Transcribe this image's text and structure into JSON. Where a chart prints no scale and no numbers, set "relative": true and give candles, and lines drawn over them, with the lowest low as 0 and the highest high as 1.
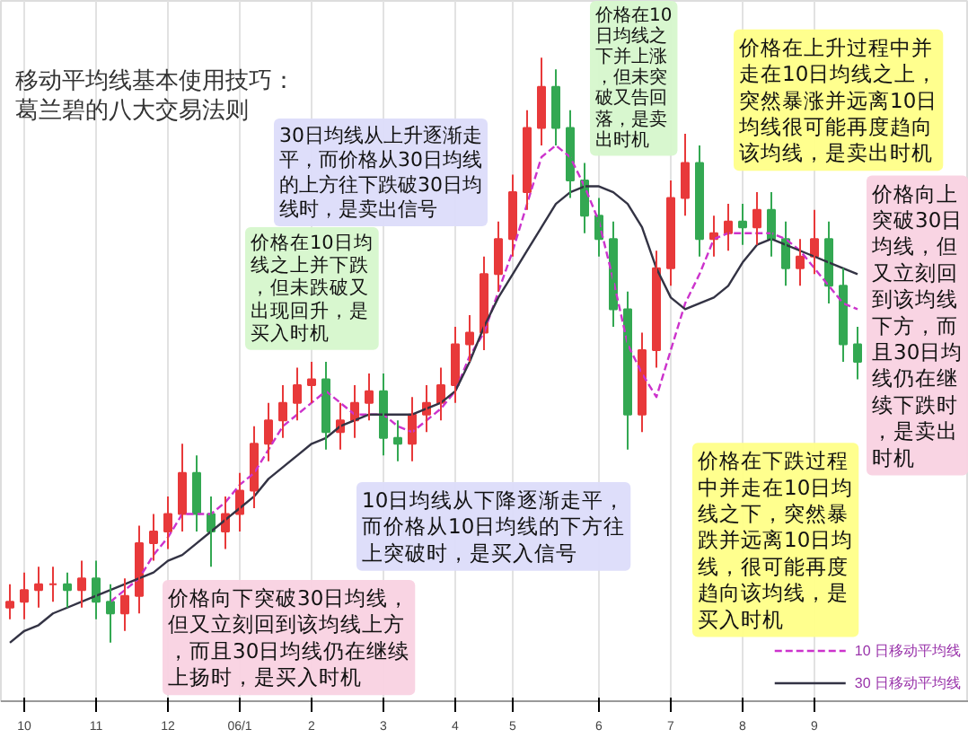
{
  "chart_data": {
    "type": "candlestick",
    "title": "移动平均线基本使用技巧：葛兰碧的八大交易法则",
    "relative": true,
    "categories": [
      null,
      "10",
      null,
      null,
      null,
      null,
      "11",
      null,
      null,
      null,
      null,
      "12",
      null,
      null,
      null,
      null,
      "06/1",
      null,
      null,
      null,
      null,
      "2",
      null,
      null,
      null,
      null,
      "3",
      null,
      null,
      null,
      null,
      "4",
      null,
      null,
      null,
      "5",
      null,
      null,
      null,
      null,
      null,
      "6",
      null,
      null,
      null,
      null,
      "7",
      null,
      null,
      null,
      null,
      "8",
      null,
      null,
      null,
      null,
      "9",
      null,
      null,
      null
    ],
    "ohlc": [
      [
        0.06,
        0.1,
        0.04,
        0.07
      ],
      [
        0.07,
        0.12,
        0.04,
        0.09
      ],
      [
        0.09,
        0.13,
        0.06,
        0.1
      ],
      [
        0.1,
        0.13,
        0.07,
        0.1
      ],
      [
        0.1,
        0.12,
        0.06,
        0.09
      ],
      [
        0.09,
        0.14,
        0.06,
        0.11
      ],
      [
        0.11,
        0.14,
        0.04,
        0.07
      ],
      [
        0.07,
        0.1,
        0,
        0.05
      ],
      [
        0.05,
        0.11,
        0.02,
        0.08
      ],
      [
        0.08,
        0.2,
        0.05,
        0.17
      ],
      [
        0.17,
        0.22,
        0.14,
        0.19
      ],
      [
        0.19,
        0.25,
        0.16,
        0.22
      ],
      [
        0.22,
        0.34,
        0.19,
        0.29
      ],
      [
        0.29,
        0.32,
        0.19,
        0.22
      ],
      [
        0.22,
        0.25,
        0.13,
        0.19
      ],
      [
        0.19,
        0.25,
        0.16,
        0.22
      ],
      [
        0.22,
        0.29,
        0.19,
        0.26
      ],
      [
        0.26,
        0.37,
        0.23,
        0.34
      ],
      [
        0.34,
        0.41,
        0.31,
        0.38
      ],
      [
        0.38,
        0.44,
        0.35,
        0.41
      ],
      [
        0.41,
        0.47,
        0.38,
        0.44
      ],
      [
        0.44,
        0.48,
        0.41,
        0.45
      ],
      [
        0.45,
        0.48,
        0.33,
        0.36
      ],
      [
        0.36,
        0.41,
        0.33,
        0.38
      ],
      [
        0.38,
        0.44,
        0.35,
        0.41
      ],
      [
        0.41,
        0.46,
        0.38,
        0.43
      ],
      [
        0.43,
        0.46,
        0.32,
        0.35
      ],
      [
        0.35,
        0.38,
        0.31,
        0.34
      ],
      [
        0.34,
        0.42,
        0.31,
        0.39
      ],
      [
        0.39,
        0.44,
        0.36,
        0.41
      ],
      [
        0.41,
        0.47,
        0.38,
        0.44
      ],
      [
        0.44,
        0.54,
        0.41,
        0.51
      ],
      [
        0.51,
        0.56,
        0.48,
        0.53
      ],
      [
        0.53,
        0.66,
        0.5,
        0.63
      ],
      [
        0.63,
        0.72,
        0.6,
        0.69
      ],
      [
        0.69,
        0.8,
        0.66,
        0.77
      ],
      [
        0.77,
        0.91,
        0.74,
        0.88
      ],
      [
        0.88,
        1,
        0.85,
        0.95
      ],
      [
        0.95,
        0.98,
        0.85,
        0.88
      ],
      [
        0.88,
        0.91,
        0.76,
        0.79
      ],
      [
        0.79,
        0.82,
        0.7,
        0.73
      ],
      [
        0.73,
        0.76,
        0.66,
        0.69
      ],
      [
        0.69,
        0.72,
        0.54,
        0.57
      ],
      [
        0.57,
        0.6,
        0.33,
        0.39
      ],
      [
        0.39,
        0.53,
        0.36,
        0.5
      ],
      [
        0.5,
        0.67,
        0.47,
        0.64
      ],
      [
        0.64,
        0.79,
        0.61,
        0.76
      ],
      [
        0.76,
        0.87,
        0.73,
        0.82
      ],
      [
        0.82,
        0.85,
        0.66,
        0.69
      ],
      [
        0.69,
        0.73,
        0.66,
        0.7
      ],
      [
        0.7,
        0.75,
        0.67,
        0.72
      ],
      [
        0.72,
        0.75,
        0.68,
        0.71
      ],
      [
        0.71,
        0.77,
        0.68,
        0.74
      ],
      [
        0.74,
        0.77,
        0.66,
        0.69
      ],
      [
        0.69,
        0.72,
        0.61,
        0.64
      ],
      [
        0.64,
        0.69,
        0.61,
        0.66
      ],
      [
        0.66,
        0.74,
        0.63,
        0.69
      ],
      [
        0.69,
        0.72,
        0.58,
        0.61
      ],
      [
        0.61,
        0.64,
        0.48,
        0.51
      ],
      [
        0.51,
        0.54,
        0.45,
        0.48
      ]
    ],
    "colors": [
      "#e8393a",
      "#e8393a",
      "#e8393a",
      "#e8393a",
      "#33a852",
      "#e8393a",
      "#33a852",
      "#33a852",
      "#e8393a",
      "#e8393a",
      "#e8393a",
      "#e8393a",
      "#e8393a",
      "#33a852",
      "#33a852",
      "#e8393a",
      "#e8393a",
      "#e8393a",
      "#e8393a",
      "#e8393a",
      "#e8393a",
      "#e8393a",
      "#33a852",
      "#e8393a",
      "#e8393a",
      "#e8393a",
      "#33a852",
      "#33a852",
      "#e8393a",
      "#e8393a",
      "#e8393a",
      "#e8393a",
      "#e8393a",
      "#e8393a",
      "#e8393a",
      "#e8393a",
      "#e8393a",
      "#e8393a",
      "#33a852",
      "#33a852",
      "#33a852",
      "#33a852",
      "#33a852",
      "#33a852",
      "#e8393a",
      "#e8393a",
      "#e8393a",
      "#e8393a",
      "#33a852",
      "#e8393a",
      "#e8393a",
      "#33a852",
      "#e8393a",
      "#33a852",
      "#33a852",
      "#e8393a",
      "#e8393a",
      "#33a852",
      "#33a852",
      "#33a852"
    ],
    "series": [
      {
        "name": "10 日移动平均线",
        "type": "line",
        "line_style": "dashed",
        "color": "#cc33cc",
        "values": [
          null,
          null,
          null,
          null,
          null,
          null,
          null,
          0.07,
          0.09,
          0.11,
          0.15,
          0.18,
          0.22,
          0.22,
          0.22,
          0.24,
          0.27,
          0.29,
          0.33,
          0.37,
          0.39,
          0.41,
          0.43,
          0.41,
          0.39,
          0.39,
          0.39,
          0.37,
          0.36,
          0.38,
          0.4,
          0.43,
          0.49,
          0.53,
          0.6,
          0.67,
          0.75,
          0.83,
          0.85,
          0.83,
          0.78,
          0.72,
          0.62,
          0.51,
          0.46,
          0.42,
          0.5,
          0.58,
          0.63,
          0.69,
          0.7,
          0.7,
          0.7,
          0.7,
          0.69,
          0.67,
          0.64,
          0.61,
          0.58,
          0.57
        ]
      },
      {
        "name": "30 日移动平均线",
        "type": "line",
        "line_style": "solid",
        "color": "#333344",
        "values": [
          0,
          0.02,
          0.03,
          0.05,
          0.06,
          0.07,
          0.08,
          0.09,
          0.1,
          0.11,
          0.12,
          0.14,
          0.15,
          0.17,
          0.19,
          0.21,
          0.23,
          0.25,
          0.28,
          0.3,
          0.32,
          0.34,
          0.35,
          0.37,
          0.38,
          0.39,
          0.39,
          0.39,
          0.39,
          0.4,
          0.41,
          0.43,
          0.48,
          0.54,
          0.59,
          0.63,
          0.67,
          0.71,
          0.75,
          0.77,
          0.78,
          0.78,
          0.77,
          0.75,
          0.71,
          0.64,
          0.59,
          0.57,
          0.58,
          0.59,
          0.61,
          0.65,
          0.68,
          0.69,
          0.68,
          0.67,
          0.66,
          0.65,
          0.64,
          0.63
        ]
      }
    ],
    "grid": "x",
    "legend": "bottom right",
    "annotations": [
      "30日均线从上升逐渐走平，而价格从30日均线的上方往下跌破30日均线时，是卖出信号",
      "价格在10日均线之上并下跌，但未跌破又出现回升，是买入时机",
      "价格在10日均线之下并上涨，但未突破又告回落，是卖出时机",
      "价格在上升过程中并走在10日均线之上，突然暴涨并远离10日均线很可能再度趋向该均线，是卖出时机",
      "价格向上突破30日均线，但又立刻回到该均线下方，而且30日均线仍在继续下跌时，是卖出时机",
      "价格在下跌过程中并走在10日均线之下，突然暴跌并远离10日均线，很可能再度趋向该均线，是买入时机",
      "10日均线从下降逐渐走平，而价格从10日均线的下方往上突破时，是买入信号",
      "价格向下突破30日均线，但又立刻回到该均线上方，而且30日均线仍在继续上扬时，是买入时机"
    ]
  }
}
